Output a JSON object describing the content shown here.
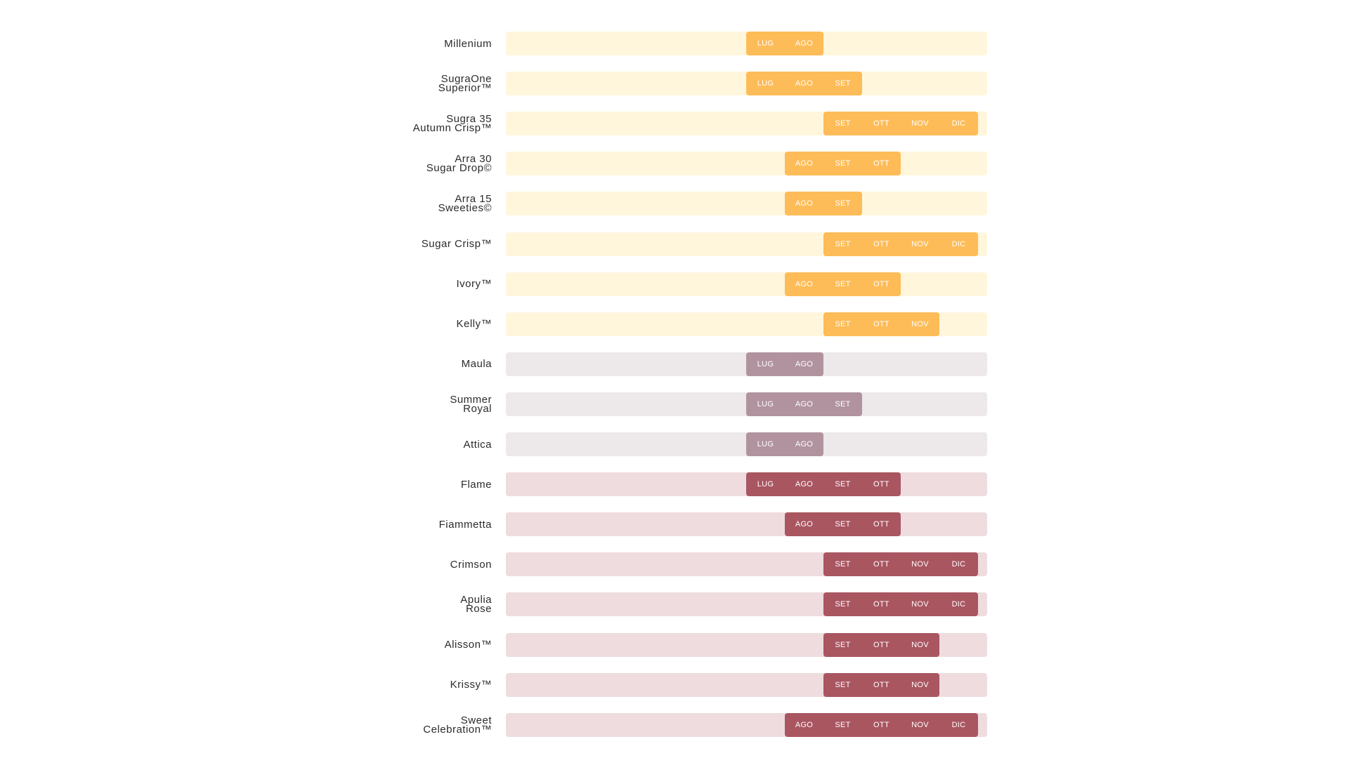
{
  "chart_data": {
    "type": "gantt",
    "title": "",
    "months": [
      "LUG",
      "AGO",
      "SET",
      "OTT",
      "NOV",
      "DIC"
    ],
    "groups": [
      {
        "name": "yellow",
        "track_color": "#fff6dc",
        "bar_color": "#fdbc57"
      },
      {
        "name": "mauve",
        "track_color": "#ede8ea",
        "bar_color": "#b1939f"
      },
      {
        "name": "red",
        "track_color": "#eedcde",
        "bar_color": "#a95661"
      }
    ],
    "rows": [
      {
        "label": [
          "Millenium"
        ],
        "group": 0,
        "months": [
          "LUG",
          "AGO"
        ]
      },
      {
        "label": [
          "SugraOne",
          "Superior™"
        ],
        "group": 0,
        "months": [
          "LUG",
          "AGO",
          "SET"
        ]
      },
      {
        "label": [
          "Sugra 35",
          "Autumn Crisp™"
        ],
        "group": 0,
        "months": [
          "SET",
          "OTT",
          "NOV",
          "DIC"
        ]
      },
      {
        "label": [
          "Arra 30",
          "Sugar Drop©"
        ],
        "group": 0,
        "months": [
          "AGO",
          "SET",
          "OTT"
        ]
      },
      {
        "label": [
          "Arra 15",
          "Sweeties©"
        ],
        "group": 0,
        "months": [
          "AGO",
          "SET"
        ]
      },
      {
        "label": [
          "Sugar Crisp™"
        ],
        "group": 0,
        "months": [
          "SET",
          "OTT",
          "NOV",
          "DIC"
        ]
      },
      {
        "label": [
          "Ivory™"
        ],
        "group": 0,
        "months": [
          "AGO",
          "SET",
          "OTT"
        ]
      },
      {
        "label": [
          "Kelly™"
        ],
        "group": 0,
        "months": [
          "SET",
          "OTT",
          "NOV"
        ]
      },
      {
        "label": [
          "Maula"
        ],
        "group": 1,
        "months": [
          "LUG",
          "AGO"
        ]
      },
      {
        "label": [
          "Summer",
          "Royal"
        ],
        "group": 1,
        "months": [
          "LUG",
          "AGO",
          "SET"
        ]
      },
      {
        "label": [
          "Attica"
        ],
        "group": 1,
        "months": [
          "LUG",
          "AGO"
        ]
      },
      {
        "label": [
          "Flame"
        ],
        "group": 2,
        "months": [
          "LUG",
          "AGO",
          "SET",
          "OTT"
        ]
      },
      {
        "label": [
          "Fiammetta"
        ],
        "group": 2,
        "months": [
          "AGO",
          "SET",
          "OTT"
        ]
      },
      {
        "label": [
          "Crimson"
        ],
        "group": 2,
        "months": [
          "SET",
          "OTT",
          "NOV",
          "DIC"
        ]
      },
      {
        "label": [
          "Apulia",
          "Rose"
        ],
        "group": 2,
        "months": [
          "SET",
          "OTT",
          "NOV",
          "DIC"
        ]
      },
      {
        "label": [
          "Alisson™"
        ],
        "group": 2,
        "months": [
          "SET",
          "OTT",
          "NOV"
        ]
      },
      {
        "label": [
          "Krissy™"
        ],
        "group": 2,
        "months": [
          "SET",
          "OTT",
          "NOV"
        ]
      },
      {
        "label": [
          "Sweet",
          "Celebration™"
        ],
        "group": 2,
        "months": [
          "AGO",
          "SET",
          "OTT",
          "NOV",
          "DIC"
        ]
      }
    ]
  }
}
